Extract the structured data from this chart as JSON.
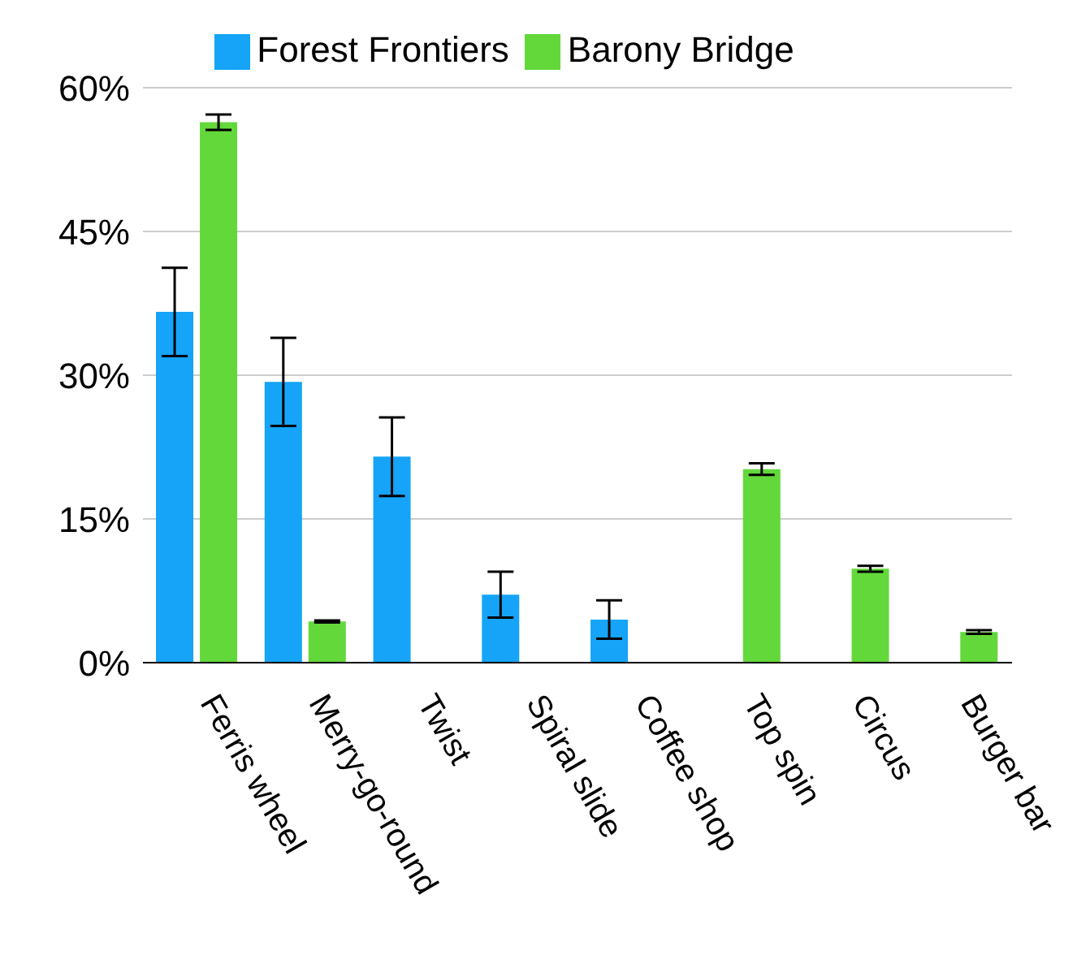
{
  "chart_data": {
    "type": "bar",
    "categories": [
      "Ferris wheel",
      "Merry-go-round",
      "Twist",
      "Spiral slide",
      "Coffee shop",
      "Top spin",
      "Circus",
      "Burger bar"
    ],
    "series": [
      {
        "name": "Forest Frontiers",
        "color": "#15a4f7",
        "values": [
          36.6,
          29.3,
          21.5,
          7.1,
          4.5,
          null,
          null,
          null
        ],
        "errors": [
          4.6,
          4.6,
          4.1,
          2.4,
          2.0,
          null,
          null,
          null
        ]
      },
      {
        "name": "Barony Bridge",
        "color": "#63d83a",
        "values": [
          56.4,
          4.3,
          null,
          null,
          null,
          20.2,
          9.8,
          3.2
        ],
        "errors": [
          0.8,
          0.1,
          null,
          null,
          null,
          0.6,
          0.3,
          0.2
        ]
      }
    ],
    "ylim": [
      0,
      60
    ],
    "yticks": [
      {
        "value": 0,
        "label": "0%"
      },
      {
        "value": 15,
        "label": "15%"
      },
      {
        "value": 30,
        "label": "30%"
      },
      {
        "value": 45,
        "label": "45%"
      },
      {
        "value": 60,
        "label": "60%"
      }
    ],
    "grid": "y",
    "legend": "top"
  }
}
